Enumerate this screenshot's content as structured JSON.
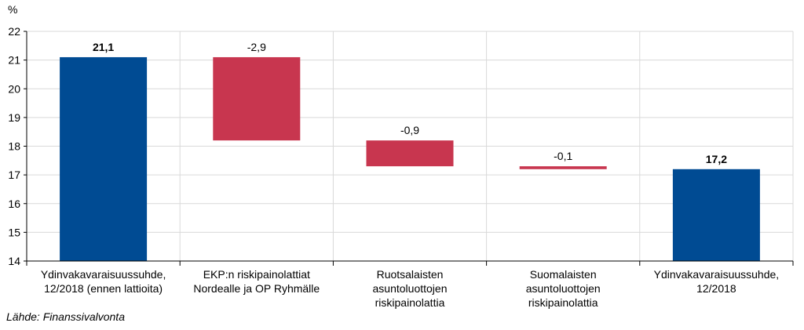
{
  "chart_data": {
    "type": "bar",
    "subtype": "waterfall",
    "unit": "%",
    "source": "Lähde: Finanssivalvonta",
    "ylim": [
      14,
      22
    ],
    "yticks": [
      "14",
      "15",
      "16",
      "17",
      "18",
      "19",
      "20",
      "21",
      "22"
    ],
    "grid": true,
    "legend": "none",
    "categories": [
      [
        "Ydinvakavaraisuussuhde,",
        "12/2018 (ennen lattioita)"
      ],
      [
        "EKP:n riskipainolattiat",
        "Nordealle ja OP Ryhmälle"
      ],
      [
        "Ruotsalaisten",
        "asuntoluottojen",
        "riskipainolattia"
      ],
      [
        "Suomalaisten",
        "asuntoluottojen",
        "riskipainolattia"
      ],
      [
        "Ydinvakavaraisuussuhde,",
        "12/2018"
      ]
    ],
    "bars": [
      {
        "kind": "total",
        "start": 14,
        "end": 21.1,
        "label": "21,1"
      },
      {
        "kind": "decrease",
        "start": 21.1,
        "end": 18.2,
        "label": "-2,9"
      },
      {
        "kind": "decrease",
        "start": 18.2,
        "end": 17.3,
        "label": "-0,9"
      },
      {
        "kind": "decrease",
        "start": 17.3,
        "end": 17.2,
        "label": "-0,1"
      },
      {
        "kind": "total",
        "start": 14,
        "end": 17.2,
        "label": "17,2"
      }
    ],
    "colors": {
      "total": "#004b93",
      "decrease": "#c8364f",
      "grid": "#d9d9d9",
      "axis": "#000000"
    }
  }
}
